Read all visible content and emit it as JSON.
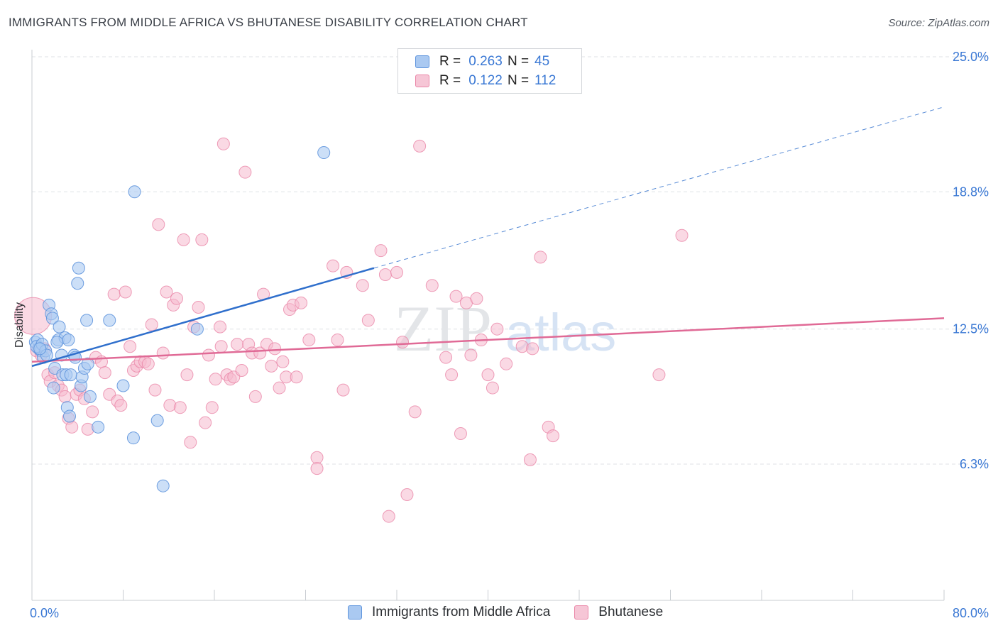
{
  "header": {
    "title": "IMMIGRANTS FROM MIDDLE AFRICA VS BHUTANESE DISABILITY CORRELATION CHART",
    "source": "Source: ZipAtlas.com"
  },
  "legend": {
    "series1": {
      "r_label": "R =",
      "r_value": "0.263",
      "n_label": "N =",
      "n_value": "45"
    },
    "series2": {
      "r_label": "R =",
      "r_value": "0.122",
      "n_label": "N =",
      "n_value": "112"
    }
  },
  "watermark": {
    "zip": "ZIP",
    "atlas": "atlas"
  },
  "chart_data": {
    "type": "scatter",
    "title": "IMMIGRANTS FROM MIDDLE AFRICA VS BHUTANESE DISABILITY CORRELATION CHART",
    "xlabel": "",
    "ylabel": "Disability",
    "xlim": [
      0,
      80
    ],
    "ylim": [
      0,
      26.2
    ],
    "x_tick_labels": [
      {
        "value": 0,
        "label": "0.0%"
      },
      {
        "value": 80,
        "label": "80.0%"
      }
    ],
    "y_tick_labels": [
      {
        "value": 6.3,
        "label": "6.3%"
      },
      {
        "value": 12.5,
        "label": "12.5%"
      },
      {
        "value": 18.8,
        "label": "18.8%"
      },
      {
        "value": 25.0,
        "label": "25.0%"
      }
    ],
    "x_minor_ticks": [
      0,
      8,
      16,
      24,
      32,
      40,
      48,
      56,
      64,
      72,
      80
    ],
    "grid": true,
    "legend_position": "top-center",
    "colors": {
      "series1_fill": "#aac9f1",
      "series1_stroke": "#5f95dd",
      "series1_line": "#2f6fcc",
      "series2_fill": "#f6b9cd",
      "series2_stroke": "#ea86a7",
      "series2_line": "#e06a96",
      "axis_label": "#3a78d4",
      "grid": "#dfe2e6"
    },
    "series": [
      {
        "name": "Immigrants from Middle Africa",
        "r": 0.263,
        "n": 45,
        "trend": {
          "x0": 0,
          "y0": 10.8,
          "x1": 30,
          "y1": 15.3,
          "dashed_to_x": 80,
          "dashed_to_y": 22.7
        },
        "points": [
          [
            0.3,
            11.9
          ],
          [
            0.5,
            12.0
          ],
          [
            0.6,
            11.6
          ],
          [
            0.8,
            11.5
          ],
          [
            1.0,
            11.2
          ],
          [
            0.4,
            11.7
          ],
          [
            0.9,
            11.8
          ],
          [
            1.2,
            11.5
          ],
          [
            1.5,
            13.6
          ],
          [
            1.7,
            13.2
          ],
          [
            1.8,
            13.0
          ],
          [
            2.0,
            10.7
          ],
          [
            2.3,
            12.0
          ],
          [
            2.4,
            12.6
          ],
          [
            2.6,
            11.3
          ],
          [
            2.7,
            10.4
          ],
          [
            2.9,
            12.1
          ],
          [
            3.0,
            10.4
          ],
          [
            3.2,
            12.0
          ],
          [
            1.9,
            9.8
          ],
          [
            3.4,
            10.4
          ],
          [
            3.1,
            8.9
          ],
          [
            3.3,
            8.5
          ],
          [
            3.7,
            11.3
          ],
          [
            3.8,
            11.2
          ],
          [
            4.0,
            14.6
          ],
          [
            4.1,
            15.3
          ],
          [
            4.3,
            9.9
          ],
          [
            4.4,
            10.3
          ],
          [
            4.6,
            10.7
          ],
          [
            4.8,
            12.9
          ],
          [
            4.9,
            10.9
          ],
          [
            5.1,
            9.4
          ],
          [
            5.8,
            8.0
          ],
          [
            6.8,
            12.9
          ],
          [
            8.0,
            9.9
          ],
          [
            8.9,
            7.5
          ],
          [
            9.0,
            18.8
          ],
          [
            11.0,
            8.3
          ],
          [
            11.5,
            5.3
          ],
          [
            14.5,
            12.5
          ],
          [
            25.6,
            20.6
          ],
          [
            1.3,
            11.3
          ],
          [
            0.7,
            11.6
          ],
          [
            2.2,
            11.9
          ]
        ]
      },
      {
        "name": "Bhutanese",
        "r": 0.122,
        "n": 112,
        "trend": {
          "x0": 0,
          "y0": 11.0,
          "x1": 80,
          "y1": 13.0
        },
        "points": [
          [
            0.1,
            13.1
          ],
          [
            0.4,
            11.5
          ],
          [
            0.8,
            11.3
          ],
          [
            1.1,
            11.6
          ],
          [
            1.4,
            10.4
          ],
          [
            1.6,
            10.1
          ],
          [
            2.0,
            10.5
          ],
          [
            2.3,
            9.9
          ],
          [
            2.6,
            9.7
          ],
          [
            2.9,
            9.4
          ],
          [
            3.2,
            8.4
          ],
          [
            3.5,
            8.0
          ],
          [
            3.9,
            9.5
          ],
          [
            4.2,
            9.7
          ],
          [
            4.6,
            9.3
          ],
          [
            4.9,
            7.9
          ],
          [
            5.3,
            8.7
          ],
          [
            5.6,
            11.2
          ],
          [
            6.1,
            11.0
          ],
          [
            6.4,
            10.5
          ],
          [
            6.8,
            9.5
          ],
          [
            7.2,
            14.1
          ],
          [
            7.5,
            9.2
          ],
          [
            7.8,
            9.0
          ],
          [
            8.2,
            14.2
          ],
          [
            8.6,
            11.7
          ],
          [
            8.9,
            10.6
          ],
          [
            9.2,
            10.8
          ],
          [
            9.5,
            11.0
          ],
          [
            9.9,
            11.0
          ],
          [
            10.2,
            10.9
          ],
          [
            10.5,
            12.7
          ],
          [
            10.8,
            9.7
          ],
          [
            11.1,
            17.3
          ],
          [
            11.5,
            11.4
          ],
          [
            11.8,
            14.2
          ],
          [
            12.1,
            9.0
          ],
          [
            12.4,
            13.6
          ],
          [
            12.7,
            13.9
          ],
          [
            13.0,
            8.9
          ],
          [
            13.3,
            16.6
          ],
          [
            13.6,
            10.4
          ],
          [
            13.9,
            7.3
          ],
          [
            14.2,
            12.6
          ],
          [
            14.6,
            13.5
          ],
          [
            14.9,
            16.6
          ],
          [
            15.2,
            8.2
          ],
          [
            15.5,
            11.3
          ],
          [
            15.8,
            8.9
          ],
          [
            16.1,
            10.2
          ],
          [
            16.5,
            12.6
          ],
          [
            16.8,
            21.0
          ],
          [
            17.1,
            10.4
          ],
          [
            17.4,
            10.2
          ],
          [
            17.7,
            10.3
          ],
          [
            18.0,
            11.8
          ],
          [
            18.4,
            10.6
          ],
          [
            18.7,
            19.7
          ],
          [
            19.0,
            11.8
          ],
          [
            19.3,
            11.4
          ],
          [
            19.6,
            9.4
          ],
          [
            20.0,
            11.4
          ],
          [
            20.3,
            14.1
          ],
          [
            20.6,
            11.8
          ],
          [
            21.0,
            10.8
          ],
          [
            21.3,
            11.6
          ],
          [
            21.7,
            9.8
          ],
          [
            22.0,
            11.0
          ],
          [
            22.3,
            10.3
          ],
          [
            22.6,
            13.4
          ],
          [
            22.9,
            13.6
          ],
          [
            23.2,
            10.3
          ],
          [
            23.6,
            13.7
          ],
          [
            25.0,
            6.6
          ],
          [
            25.0,
            6.1
          ],
          [
            26.4,
            15.4
          ],
          [
            26.8,
            12.0
          ],
          [
            27.3,
            9.7
          ],
          [
            27.6,
            15.1
          ],
          [
            29.0,
            14.5
          ],
          [
            29.5,
            12.9
          ],
          [
            30.6,
            16.1
          ],
          [
            31.0,
            15.0
          ],
          [
            31.3,
            3.9
          ],
          [
            32.0,
            15.1
          ],
          [
            32.5,
            11.9
          ],
          [
            32.9,
            4.9
          ],
          [
            33.6,
            8.7
          ],
          [
            34.0,
            20.9
          ],
          [
            35.1,
            14.5
          ],
          [
            36.3,
            11.2
          ],
          [
            36.8,
            10.4
          ],
          [
            37.2,
            14.0
          ],
          [
            37.6,
            7.7
          ],
          [
            38.1,
            13.7
          ],
          [
            38.5,
            11.3
          ],
          [
            39.0,
            13.9
          ],
          [
            39.4,
            12.0
          ],
          [
            40.0,
            10.4
          ],
          [
            40.4,
            9.8
          ],
          [
            40.8,
            12.5
          ],
          [
            41.6,
            10.9
          ],
          [
            43.0,
            11.7
          ],
          [
            43.7,
            6.5
          ],
          [
            44.6,
            15.8
          ],
          [
            45.3,
            8.0
          ],
          [
            45.7,
            7.6
          ],
          [
            55.0,
            10.4
          ],
          [
            57.0,
            16.8
          ],
          [
            43.9,
            11.6
          ],
          [
            16.6,
            11.7
          ],
          [
            24.3,
            12.0
          ]
        ]
      }
    ]
  },
  "bottom_legend": {
    "items": [
      {
        "label": "Immigrants from Middle Africa"
      },
      {
        "label": "Bhutanese"
      }
    ]
  }
}
